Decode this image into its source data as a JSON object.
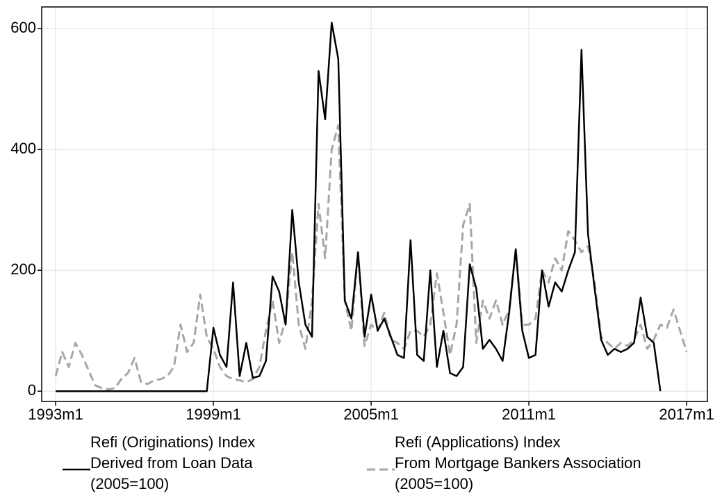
{
  "chart_data": {
    "type": "line",
    "x": [
      1993,
      1993.25,
      1993.5,
      1993.75,
      1994,
      1994.25,
      1994.5,
      1994.75,
      1995,
      1995.25,
      1995.5,
      1995.75,
      1996,
      1996.25,
      1996.5,
      1996.75,
      1997,
      1997.25,
      1997.5,
      1997.75,
      1998,
      1998.25,
      1998.5,
      1998.75,
      1999,
      1999.25,
      1999.5,
      1999.75,
      2000,
      2000.25,
      2000.5,
      2000.75,
      2001,
      2001.25,
      2001.5,
      2001.75,
      2002,
      2002.25,
      2002.5,
      2002.75,
      2003,
      2003.25,
      2003.5,
      2003.75,
      2004,
      2004.25,
      2004.5,
      2004.75,
      2005,
      2005.25,
      2005.5,
      2005.75,
      2006,
      2006.25,
      2006.5,
      2006.75,
      2007,
      2007.25,
      2007.5,
      2007.75,
      2008,
      2008.25,
      2008.5,
      2008.75,
      2009,
      2009.25,
      2009.5,
      2009.75,
      2010,
      2010.25,
      2010.5,
      2010.75,
      2011,
      2011.25,
      2011.5,
      2011.75,
      2012,
      2012.25,
      2012.5,
      2012.75,
      2013,
      2013.25,
      2013.5,
      2013.75,
      2014,
      2014.25,
      2014.5,
      2014.75,
      2015,
      2015.25,
      2015.5,
      2015.75,
      2016,
      2016.25,
      2016.5,
      2016.75,
      2017
    ],
    "series": [
      {
        "name": "Refi (Originations) Index\nDerived from Loan Data\n(2005=100)",
        "color": "#000000",
        "dash": "solid",
        "values": [
          0,
          0,
          0,
          0,
          0,
          0,
          0,
          0,
          0,
          0,
          0,
          0,
          0,
          0,
          0,
          0,
          0,
          0,
          0,
          0,
          0,
          0,
          0,
          0,
          105,
          60,
          40,
          180,
          25,
          80,
          22,
          25,
          50,
          190,
          165,
          110,
          300,
          180,
          110,
          90,
          530,
          450,
          610,
          550,
          150,
          120,
          230,
          90,
          160,
          100,
          120,
          90,
          60,
          55,
          250,
          60,
          50,
          200,
          40,
          100,
          30,
          25,
          40,
          210,
          170,
          70,
          85,
          70,
          50,
          130,
          235,
          100,
          55,
          60,
          200,
          140,
          180,
          165,
          200,
          230,
          565,
          260,
          170,
          85,
          60,
          70,
          65,
          70,
          80,
          155,
          90,
          80,
          0,
          null,
          null,
          null,
          null
        ]
      },
      {
        "name": "Refi (Applications) Index\nFrom Mortgage Bankers Association\n(2005=100)",
        "color": "#a6a6a6",
        "dash": "dashed",
        "values": [
          25,
          65,
          40,
          80,
          60,
          35,
          10,
          5,
          3,
          5,
          20,
          30,
          55,
          15,
          12,
          18,
          20,
          25,
          40,
          110,
          65,
          80,
          160,
          90,
          70,
          40,
          25,
          20,
          18,
          15,
          20,
          40,
          100,
          150,
          80,
          120,
          230,
          110,
          70,
          150,
          310,
          220,
          400,
          440,
          150,
          100,
          230,
          75,
          110,
          100,
          130,
          85,
          80,
          70,
          100,
          100,
          90,
          110,
          195,
          130,
          60,
          110,
          275,
          310,
          80,
          150,
          120,
          150,
          110,
          135,
          235,
          110,
          110,
          120,
          200,
          180,
          220,
          200,
          265,
          250,
          230,
          240,
          180,
          90,
          80,
          70,
          80,
          75,
          85,
          110,
          70,
          85,
          110,
          105,
          135,
          100,
          65
        ]
      }
    ],
    "xlim": [
      1992.47,
      2017.79
    ],
    "xticks": [
      {
        "value": 1993,
        "label": "1993m1"
      },
      {
        "value": 1999,
        "label": "1999m1"
      },
      {
        "value": 2005,
        "label": "2005m1"
      },
      {
        "value": 2011,
        "label": "2011m1"
      },
      {
        "value": 2017,
        "label": "2017m1"
      }
    ],
    "ylim": [
      -17,
      636
    ],
    "yticks": [
      0,
      200,
      400,
      600
    ],
    "grid": true
  }
}
